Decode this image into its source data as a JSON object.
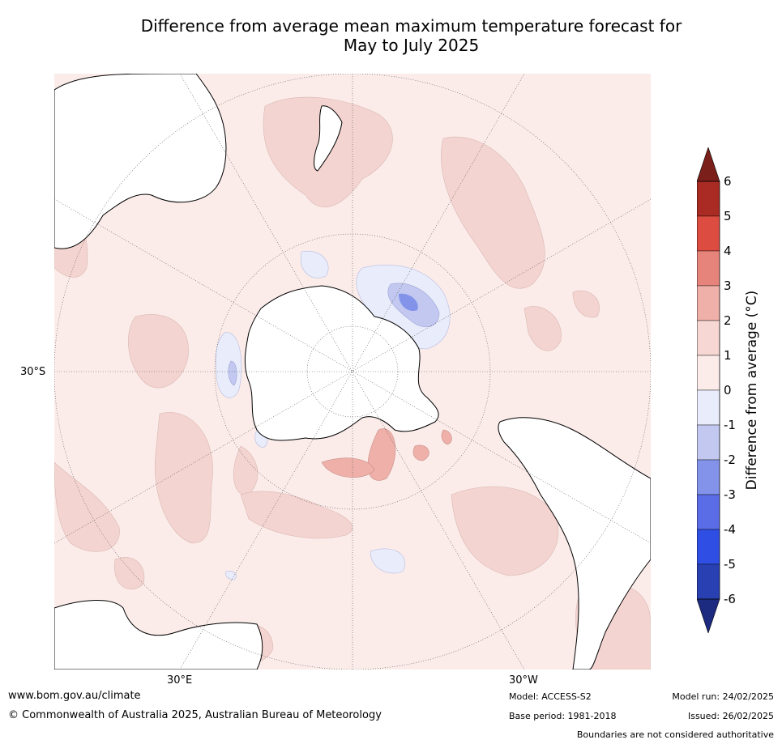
{
  "title_line1": "Difference from average mean maximum temperature forecast for",
  "title_line2": "May to July 2025",
  "map": {
    "lat_label": "30°S",
    "lon_labels": [
      "30°E",
      "30°W"
    ],
    "land_color": "#ffffff",
    "background_anomaly_color": "#fbecea"
  },
  "colorbar": {
    "label": "Difference from average (°C)",
    "ticks": [
      "6",
      "5",
      "4",
      "3",
      "2",
      "1",
      "0",
      "-1",
      "-2",
      "-3",
      "-4",
      "-5",
      "-6"
    ],
    "colors_top_to_bottom": [
      "#aa2b23",
      "#dc4c40",
      "#e6847b",
      "#eeb0a9",
      "#f6d7d3",
      "#fbecea",
      "#e9ecfa",
      "#c2c8f0",
      "#8393ea",
      "#5a6de6",
      "#2f4ee4",
      "#2840b2"
    ],
    "over_color": "#7a1f1a",
    "under_color": "#1c2b80"
  },
  "footer": {
    "url": "www.bom.gov.au/climate",
    "copyright": "© Commonwealth of Australia 2025, Australian Bureau of Meteorology",
    "model": "Model: ACCESS-S2",
    "base_period": "Base period: 1981-2018",
    "model_run": "Model run: 24/02/2025",
    "issued": "Issued: 26/02/2025",
    "disclaimer": "Boundaries are not considered authoritative"
  }
}
